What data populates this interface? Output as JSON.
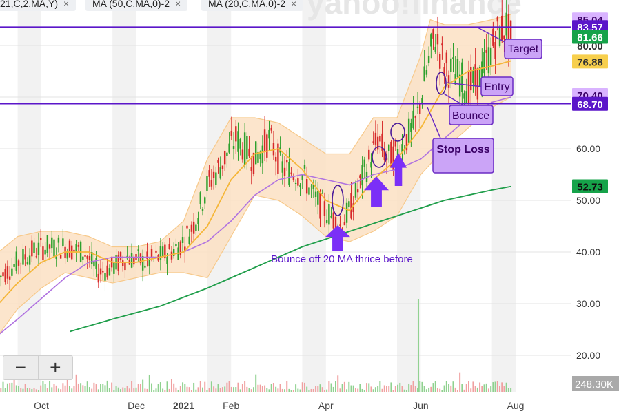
{
  "indicator_chips": [
    {
      "label": "21,C,2,MA,Y)",
      "close": "×"
    },
    {
      "label": "MA (50,C,MA,0)-2",
      "close": "×"
    },
    {
      "label": "MA (20,C,MA,0)-2",
      "close": "×"
    }
  ],
  "watermark": "yahoo!finance",
  "zoom": {
    "minus": "−",
    "plus": "+"
  },
  "price_tags": [
    {
      "text": "85.04",
      "value": 85.04,
      "bg": "#d9b3ff",
      "fg": "#3a0066",
      "partial": true
    },
    {
      "text": "83.57",
      "value": 83.57,
      "bg": "#5b16c9",
      "fg": "#ffffff"
    },
    {
      "text": "80.00",
      "value": 80.0,
      "bg": "#ffffff",
      "fg": "#333333",
      "partial": true
    },
    {
      "text": "81.66",
      "value": 81.66,
      "bg": "#16a34a",
      "fg": "#ffffff"
    },
    {
      "text": "76.88",
      "value": 76.88,
      "bg": "#f7cf4d",
      "fg": "#333333"
    },
    {
      "text": "70.40",
      "value": 70.4,
      "bg": "#d9b3ff",
      "fg": "#3a0066",
      "partial": true
    },
    {
      "text": "68.70",
      "value": 68.7,
      "bg": "#5b16c9",
      "fg": "#ffffff"
    },
    {
      "text": "52.73",
      "value": 52.73,
      "bg": "#16a34a",
      "fg": "#111111"
    }
  ],
  "volume_tag": "248.30K",
  "annotations": {
    "target": "Target",
    "entry": "Entry",
    "bounce": "Bounce",
    "stop_loss": "Stop Loss",
    "bounce_note": "Bounce off 20 MA thrice before"
  },
  "colors": {
    "up": "#2ca02c",
    "down": "#d62728",
    "ma20": "#f5b638",
    "ma50": "#b073e0",
    "ma200": "#1f9e4a",
    "band_fill": "#fbe0c3",
    "hline": "#5b16c9",
    "callout_fill": "#cba4f7",
    "callout_stroke": "#6a2bc4",
    "arrow": "#7b2ff7"
  },
  "chart_data": {
    "type": "candlestick",
    "y_axis": {
      "ticks": [
        20,
        30,
        40,
        50,
        60,
        70,
        80
      ],
      "tick_labels": [
        "20.00",
        "30.00",
        "40.00",
        "50.00",
        "60.00",
        "70.00",
        "80.00"
      ],
      "range": [
        17,
        87
      ]
    },
    "x_axis": {
      "labels": [
        "Oct",
        "Dec",
        "2021",
        "Feb",
        "Apr",
        "Jun",
        "Aug"
      ],
      "label_months": [
        9.5,
        11.5,
        12.5,
        13.5,
        15.5,
        17.5,
        19.5
      ],
      "range_months": [
        8.6,
        21.1
      ]
    },
    "horizontal_lines": [
      {
        "name": "target",
        "value": 83.57
      },
      {
        "name": "stop",
        "value": 68.7
      }
    ],
    "price_path": [
      [
        8.6,
        35
      ],
      [
        9.0,
        38
      ],
      [
        9.3,
        40
      ],
      [
        9.6,
        41
      ],
      [
        10.0,
        41
      ],
      [
        10.4,
        40
      ],
      [
        10.7,
        36
      ],
      [
        11.0,
        37
      ],
      [
        11.3,
        39
      ],
      [
        11.7,
        38
      ],
      [
        12.0,
        39
      ],
      [
        12.4,
        41
      ],
      [
        12.7,
        45
      ],
      [
        13.0,
        53
      ],
      [
        13.3,
        57
      ],
      [
        13.6,
        62
      ],
      [
        14.0,
        58
      ],
      [
        14.3,
        62
      ],
      [
        14.6,
        56
      ],
      [
        15.0,
        55
      ],
      [
        15.3,
        50
      ],
      [
        15.6,
        47
      ],
      [
        15.8,
        45
      ],
      [
        16.0,
        48
      ],
      [
        16.3,
        55
      ],
      [
        16.6,
        62
      ],
      [
        16.8,
        58
      ],
      [
        17.0,
        59
      ],
      [
        17.2,
        62
      ],
      [
        17.4,
        65
      ],
      [
        17.6,
        74
      ],
      [
        17.8,
        82
      ],
      [
        18.0,
        76
      ],
      [
        18.3,
        74
      ],
      [
        18.5,
        72
      ],
      [
        18.7,
        73
      ],
      [
        18.9,
        77
      ],
      [
        19.1,
        82
      ],
      [
        19.3,
        84
      ],
      [
        19.4,
        81
      ]
    ],
    "ma20": [
      [
        8.6,
        30
      ],
      [
        9.0,
        34
      ],
      [
        9.5,
        38
      ],
      [
        10.0,
        40
      ],
      [
        10.5,
        40
      ],
      [
        11.0,
        38
      ],
      [
        11.5,
        38
      ],
      [
        12.0,
        39
      ],
      [
        12.5,
        40
      ],
      [
        13.0,
        45
      ],
      [
        13.5,
        54
      ],
      [
        14.0,
        59
      ],
      [
        14.5,
        60
      ],
      [
        15.0,
        56
      ],
      [
        15.5,
        50
      ],
      [
        16.0,
        48
      ],
      [
        16.5,
        54
      ],
      [
        17.0,
        58
      ],
      [
        17.5,
        64
      ],
      [
        18.0,
        72
      ],
      [
        18.5,
        75
      ],
      [
        19.0,
        76
      ],
      [
        19.4,
        77
      ]
    ],
    "ma50": [
      [
        8.6,
        24
      ],
      [
        9.0,
        27
      ],
      [
        9.5,
        31
      ],
      [
        10.0,
        35
      ],
      [
        10.5,
        38
      ],
      [
        11.0,
        39
      ],
      [
        11.5,
        39
      ],
      [
        12.0,
        39
      ],
      [
        12.5,
        40
      ],
      [
        13.0,
        42
      ],
      [
        13.5,
        46
      ],
      [
        14.0,
        51
      ],
      [
        14.5,
        54
      ],
      [
        15.0,
        55
      ],
      [
        15.5,
        54
      ],
      [
        16.0,
        53
      ],
      [
        16.5,
        55
      ],
      [
        17.0,
        56
      ],
      [
        17.5,
        58
      ],
      [
        18.0,
        62
      ],
      [
        18.5,
        66
      ],
      [
        19.0,
        69
      ],
      [
        19.4,
        70
      ]
    ],
    "ma200": [
      [
        10.1,
        24.6
      ],
      [
        11.0,
        27
      ],
      [
        12.0,
        29.5
      ],
      [
        13.0,
        33
      ],
      [
        14.0,
        37
      ],
      [
        15.0,
        41
      ],
      [
        16.0,
        44
      ],
      [
        17.0,
        47
      ],
      [
        18.0,
        50
      ],
      [
        19.0,
        52
      ],
      [
        19.4,
        52.7
      ]
    ],
    "bollinger": {
      "upper": [
        [
          8.6,
          40
        ],
        [
          9.0,
          43
        ],
        [
          9.5,
          44
        ],
        [
          10.0,
          44
        ],
        [
          10.5,
          43
        ],
        [
          11.0,
          41
        ],
        [
          11.5,
          41
        ],
        [
          12.0,
          42
        ],
        [
          12.5,
          46
        ],
        [
          13.0,
          58
        ],
        [
          13.5,
          66
        ],
        [
          14.0,
          66
        ],
        [
          14.5,
          65
        ],
        [
          15.0,
          62
        ],
        [
          15.5,
          59
        ],
        [
          16.0,
          59
        ],
        [
          16.5,
          66
        ],
        [
          17.0,
          66
        ],
        [
          17.5,
          78
        ],
        [
          17.7,
          85
        ],
        [
          18.0,
          84
        ],
        [
          18.5,
          84
        ],
        [
          19.0,
          85
        ],
        [
          19.4,
          86
        ]
      ],
      "lower": [
        [
          8.6,
          24
        ],
        [
          9.0,
          29
        ],
        [
          9.5,
          33
        ],
        [
          10.0,
          36
        ],
        [
          10.5,
          35
        ],
        [
          11.0,
          34
        ],
        [
          11.5,
          35
        ],
        [
          12.0,
          36
        ],
        [
          12.5,
          36
        ],
        [
          13.0,
          35
        ],
        [
          13.5,
          43
        ],
        [
          14.0,
          51
        ],
        [
          14.5,
          50
        ],
        [
          15.0,
          47
        ],
        [
          15.5,
          43
        ],
        [
          16.0,
          42
        ],
        [
          16.5,
          44
        ],
        [
          17.0,
          47
        ],
        [
          17.5,
          55
        ],
        [
          18.0,
          60
        ],
        [
          18.5,
          64
        ],
        [
          19.0,
          68
        ],
        [
          19.4,
          70
        ]
      ]
    },
    "volume_spike": {
      "x": 17.45,
      "relative_height": 1.0
    }
  }
}
